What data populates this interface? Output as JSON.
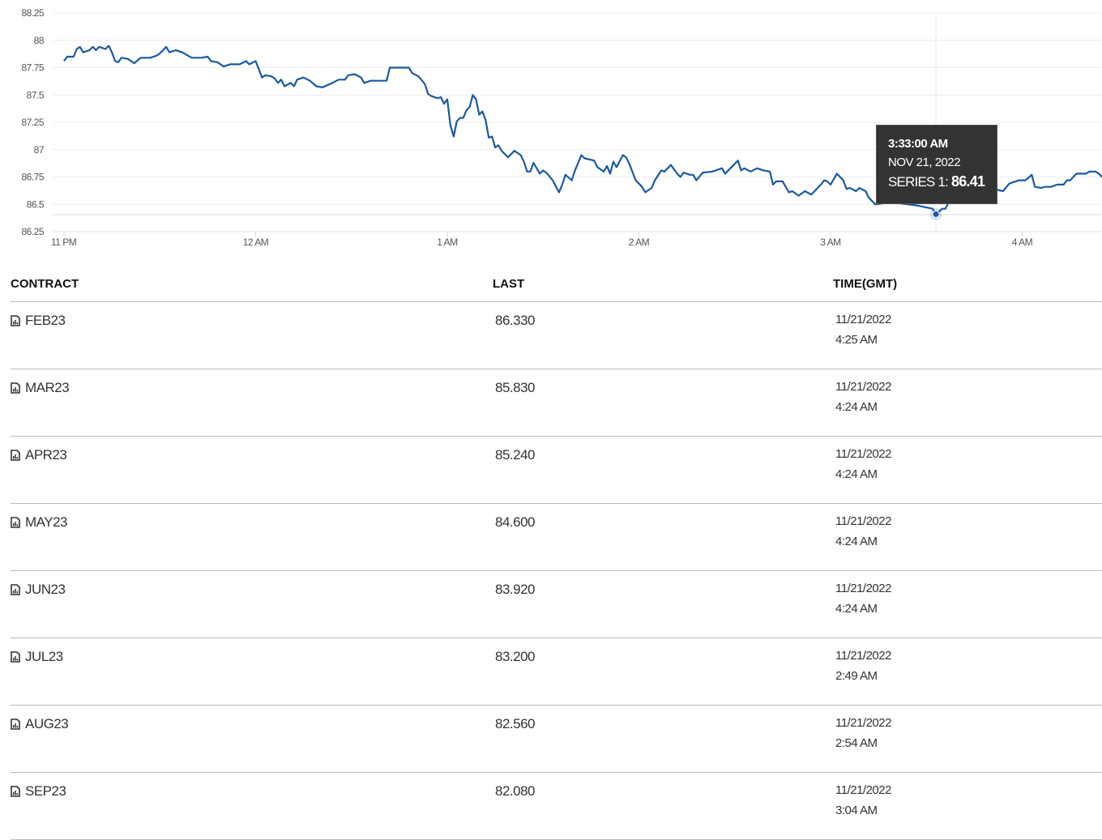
{
  "chart_data": {
    "type": "line",
    "title": "",
    "xlabel": "",
    "ylabel": "",
    "ylim": [
      86.25,
      88.25
    ],
    "y_ticks": [
      "88.25",
      "88",
      "87.75",
      "87.5",
      "87.25",
      "87",
      "86.75",
      "86.5",
      "86.25"
    ],
    "x_ticks": [
      "11 PM",
      "12 AM",
      "1 AM",
      "2 AM",
      "3 AM",
      "4 AM"
    ],
    "x_range": [
      "23:00",
      "04:25"
    ],
    "grid": true,
    "line_color": "#1a5aa0",
    "series": [
      {
        "points": [
          [
            "23:00",
            87.81
          ],
          [
            "23:01",
            87.85
          ],
          [
            "23:03",
            87.85
          ],
          [
            "23:04",
            87.92
          ],
          [
            "23:05",
            87.94
          ],
          [
            "23:06",
            87.89
          ],
          [
            "23:08",
            87.91
          ],
          [
            "23:09",
            87.94
          ],
          [
            "23:10",
            87.91
          ],
          [
            "23:11",
            87.94
          ],
          [
            "23:13",
            87.92
          ],
          [
            "23:14",
            87.95
          ],
          [
            "23:15",
            87.89
          ],
          [
            "23:16",
            87.81
          ],
          [
            "23:17",
            87.8
          ],
          [
            "23:18",
            87.84
          ],
          [
            "23:20",
            87.83
          ],
          [
            "23:22",
            87.79
          ],
          [
            "23:24",
            87.84
          ],
          [
            "23:27",
            87.84
          ],
          [
            "23:29",
            87.86
          ],
          [
            "23:30",
            87.88
          ],
          [
            "23:32",
            87.94
          ],
          [
            "23:33",
            87.89
          ],
          [
            "23:35",
            87.91
          ],
          [
            "23:37",
            87.89
          ],
          [
            "23:40",
            87.84
          ],
          [
            "23:43",
            87.84
          ],
          [
            "23:45",
            87.85
          ],
          [
            "23:46",
            87.81
          ],
          [
            "23:48",
            87.8
          ],
          [
            "23:50",
            87.76
          ],
          [
            "23:52",
            87.78
          ],
          [
            "23:55",
            87.78
          ],
          [
            "23:57",
            87.81
          ],
          [
            "23:58",
            87.78
          ],
          [
            "00:00",
            87.81
          ],
          [
            "00:02",
            87.66
          ],
          [
            "00:03",
            87.68
          ],
          [
            "00:05",
            87.67
          ],
          [
            "00:06",
            87.65
          ],
          [
            "00:07",
            87.61
          ],
          [
            "00:08",
            87.64
          ],
          [
            "00:09",
            87.58
          ],
          [
            "00:11",
            87.61
          ],
          [
            "00:12",
            87.58
          ],
          [
            "00:13",
            87.64
          ],
          [
            "00:15",
            87.66
          ],
          [
            "00:17",
            87.63
          ],
          [
            "00:19",
            87.58
          ],
          [
            "00:21",
            87.57
          ],
          [
            "00:24",
            87.61
          ],
          [
            "00:26",
            87.64
          ],
          [
            "00:28",
            87.64
          ],
          [
            "00:29",
            87.68
          ],
          [
            "00:31",
            87.69
          ],
          [
            "00:33",
            87.66
          ],
          [
            "00:34",
            87.61
          ],
          [
            "00:36",
            87.63
          ],
          [
            "00:41",
            87.63
          ],
          [
            "00:42",
            87.75
          ],
          [
            "00:48",
            87.75
          ],
          [
            "00:49",
            87.7
          ],
          [
            "00:51",
            87.67
          ],
          [
            "00:53",
            87.6
          ],
          [
            "00:54",
            87.51
          ],
          [
            "00:55",
            87.49
          ],
          [
            "00:57",
            87.47
          ],
          [
            "00:58",
            87.48
          ],
          [
            "00:59",
            87.42
          ],
          [
            "01:00",
            87.46
          ],
          [
            "01:01",
            87.22
          ],
          [
            "01:02",
            87.12
          ],
          [
            "01:03",
            87.26
          ],
          [
            "01:04",
            87.29
          ],
          [
            "01:05",
            87.29
          ],
          [
            "01:06",
            87.36
          ],
          [
            "01:07",
            87.39
          ],
          [
            "01:08",
            87.5
          ],
          [
            "01:09",
            87.46
          ],
          [
            "01:10",
            87.32
          ],
          [
            "01:11",
            87.35
          ],
          [
            "01:12",
            87.27
          ],
          [
            "01:13",
            87.11
          ],
          [
            "01:14",
            87.12
          ],
          [
            "01:15",
            87.02
          ],
          [
            "01:16",
            87.04
          ],
          [
            "01:17",
            86.99
          ],
          [
            "01:19",
            86.93
          ],
          [
            "01:21",
            86.99
          ],
          [
            "01:23",
            86.95
          ],
          [
            "01:24",
            86.89
          ],
          [
            "01:25",
            86.8
          ],
          [
            "01:26",
            86.8
          ],
          [
            "01:27",
            86.88
          ],
          [
            "01:29",
            86.78
          ],
          [
            "01:30",
            86.81
          ],
          [
            "01:31",
            86.79
          ],
          [
            "01:33",
            86.72
          ],
          [
            "01:35",
            86.61
          ],
          [
            "01:36",
            86.68
          ],
          [
            "01:37",
            86.77
          ],
          [
            "01:39",
            86.72
          ],
          [
            "01:40",
            86.81
          ],
          [
            "01:42",
            86.95
          ],
          [
            "01:43",
            86.92
          ],
          [
            "01:46",
            86.9
          ],
          [
            "01:47",
            86.84
          ],
          [
            "01:49",
            86.8
          ],
          [
            "01:50",
            86.85
          ],
          [
            "01:51",
            86.78
          ],
          [
            "01:52",
            86.89
          ],
          [
            "01:53",
            86.84
          ],
          [
            "01:55",
            86.95
          ],
          [
            "01:56",
            86.93
          ],
          [
            "01:57",
            86.87
          ],
          [
            "01:59",
            86.72
          ],
          [
            "02:01",
            86.66
          ],
          [
            "02:02",
            86.61
          ],
          [
            "02:04",
            86.65
          ],
          [
            "02:05",
            86.72
          ],
          [
            "02:07",
            86.81
          ],
          [
            "02:08",
            86.8
          ],
          [
            "02:10",
            86.86
          ],
          [
            "02:12",
            86.78
          ],
          [
            "02:13",
            86.75
          ],
          [
            "02:14",
            86.79
          ],
          [
            "02:16",
            86.77
          ],
          [
            "02:17",
            86.77
          ],
          [
            "02:18",
            86.72
          ],
          [
            "02:20",
            86.79
          ],
          [
            "02:23",
            86.8
          ],
          [
            "02:26",
            86.83
          ],
          [
            "02:27",
            86.78
          ],
          [
            "02:29",
            86.84
          ],
          [
            "02:31",
            86.9
          ],
          [
            "02:32",
            86.81
          ],
          [
            "02:33",
            86.83
          ],
          [
            "02:35",
            86.8
          ],
          [
            "02:37",
            86.83
          ],
          [
            "02:39",
            86.81
          ],
          [
            "02:41",
            86.8
          ],
          [
            "02:42",
            86.68
          ],
          [
            "02:43",
            86.71
          ],
          [
            "02:45",
            86.71
          ],
          [
            "02:47",
            86.61
          ],
          [
            "02:48",
            86.62
          ],
          [
            "02:50",
            86.58
          ],
          [
            "02:52",
            86.62
          ],
          [
            "02:54",
            86.59
          ],
          [
            "02:57",
            86.68
          ],
          [
            "02:58",
            86.72
          ],
          [
            "02:59",
            86.71
          ],
          [
            "03:00",
            86.68
          ],
          [
            "03:02",
            86.78
          ],
          [
            "03:04",
            86.72
          ],
          [
            "03:05",
            86.64
          ],
          [
            "03:06",
            86.65
          ],
          [
            "03:08",
            86.62
          ],
          [
            "03:09",
            86.65
          ],
          [
            "03:11",
            86.62
          ],
          [
            "03:12",
            86.56
          ],
          [
            "03:14",
            86.5
          ],
          [
            "03:19",
            86.52
          ],
          [
            "03:27",
            86.49
          ],
          [
            "03:32",
            86.46
          ],
          [
            "03:33",
            86.41
          ],
          [
            "03:35",
            86.46
          ],
          [
            "03:36",
            86.46
          ],
          [
            "03:38",
            86.59
          ],
          [
            "03:42",
            86.65
          ],
          [
            "03:47",
            86.66
          ],
          [
            "03:51",
            86.64
          ],
          [
            "03:54",
            86.62
          ],
          [
            "03:56",
            86.69
          ],
          [
            "03:59",
            86.72
          ],
          [
            "04:01",
            86.72
          ],
          [
            "04:03",
            86.77
          ],
          [
            "04:04",
            86.66
          ],
          [
            "04:06",
            86.65
          ],
          [
            "04:07",
            86.66
          ],
          [
            "04:09",
            86.66
          ],
          [
            "04:11",
            86.68
          ],
          [
            "04:13",
            86.68
          ],
          [
            "04:14",
            86.72
          ],
          [
            "04:15",
            86.72
          ],
          [
            "04:17",
            86.78
          ],
          [
            "04:20",
            86.78
          ],
          [
            "04:21",
            86.8
          ],
          [
            "04:23",
            86.8
          ],
          [
            "04:24",
            86.78
          ],
          [
            "04:25",
            86.75
          ]
        ]
      }
    ],
    "tooltip": {
      "time": "3:33:00 AM",
      "date": "NOV 21, 2022",
      "series_label": "SERIES 1:",
      "value": "86.41",
      "x": "03:33",
      "y": 86.41
    }
  },
  "table": {
    "headers": {
      "contract": "CONTRACT",
      "last": "LAST",
      "time": "TIME(GMT)"
    },
    "rows": [
      {
        "contract": "FEB23",
        "last": "86.330",
        "date": "11/21/2022",
        "time": "4:25 AM"
      },
      {
        "contract": "MAR23",
        "last": "85.830",
        "date": "11/21/2022",
        "time": "4:24 AM"
      },
      {
        "contract": "APR23",
        "last": "85.240",
        "date": "11/21/2022",
        "time": "4:24 AM"
      },
      {
        "contract": "MAY23",
        "last": "84.600",
        "date": "11/21/2022",
        "time": "4:24 AM"
      },
      {
        "contract": "JUN23",
        "last": "83.920",
        "date": "11/21/2022",
        "time": "4:24 AM"
      },
      {
        "contract": "JUL23",
        "last": "83.200",
        "date": "11/21/2022",
        "time": "2:49 AM"
      },
      {
        "contract": "AUG23",
        "last": "82.560",
        "date": "11/21/2022",
        "time": "2:54 AM"
      },
      {
        "contract": "SEP23",
        "last": "82.080",
        "date": "11/21/2022",
        "time": "3:04 AM"
      }
    ],
    "row_icon": "chart-document-icon"
  }
}
